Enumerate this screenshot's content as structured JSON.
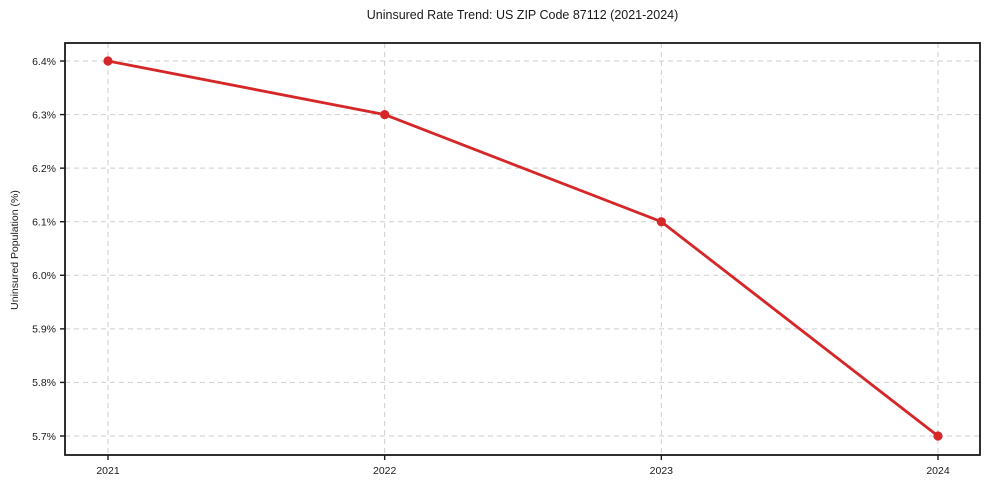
{
  "chart_data": {
    "type": "line",
    "title": "Uninsured Rate Trend: US ZIP Code 87112 (2021-2024)",
    "ylabel": "Uninsured Population (%)",
    "xlabel": "",
    "categories": [
      "2021",
      "2022",
      "2023",
      "2024"
    ],
    "values": [
      6.4,
      6.3,
      6.1,
      5.7
    ],
    "yticks": [
      6.4,
      6.3,
      6.2,
      6.1,
      6.0,
      5.9,
      5.8,
      5.7
    ],
    "ytick_labels": [
      "6.4%",
      "6.3%",
      "6.2%",
      "6.1%",
      "6.0%",
      "5.9%",
      "5.8%",
      "5.7%"
    ],
    "ylim": [
      5.66,
      6.44
    ],
    "grid": true,
    "grid_style": "dashed",
    "legend_position": "none",
    "marker": "circle",
    "colors": {
      "line": "#d62728",
      "marker": "#d62728",
      "grid": "#c9c9c9",
      "axis": "#1a1a1a",
      "text": "#1a1a1a",
      "background": "#ffffff"
    }
  }
}
